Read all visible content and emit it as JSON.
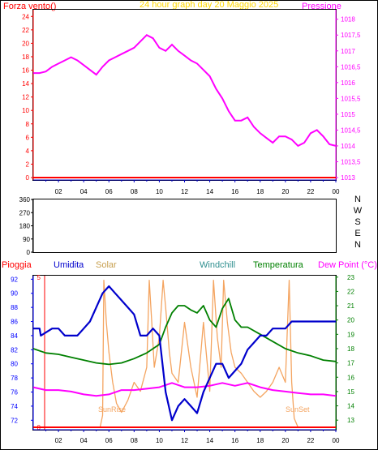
{
  "colors": {
    "frame": "#000000",
    "top_axis_left": "#ff0000",
    "top_axis_right": "#ff00ff",
    "dir_axis": "#000000",
    "rain": "#ff0000",
    "humidity": "#0000cc",
    "solar": "#f4a460",
    "windchill": "#2f8f8f",
    "temperature": "#008000",
    "dewpoint": "#ff00ff",
    "title": "#ffd700",
    "bottom_right_axis": "#008000",
    "bottom_left_axis": "#0000ff",
    "x_axis": "#0000cc"
  },
  "header": {
    "left": "Forza vento()",
    "title": "24 hour graph day   20 Maggio 2025",
    "right": "Pressione"
  },
  "legend": {
    "rain": "Pioggia",
    "humidity": "Umidita",
    "solar": "Solar",
    "windchill": "Windchill",
    "temperature": "Temperatura",
    "dewpoint": "Dew Point (°C)"
  },
  "annotations": {
    "sunrise": "SunRise",
    "sunset": "SunSet"
  },
  "compass": [
    "N",
    "W",
    "S",
    "E",
    "N"
  ],
  "chart_data": [
    {
      "type": "line",
      "name": "wind-pressure",
      "x_ticks": [
        "02",
        "04",
        "06",
        "08",
        "10",
        "12",
        "14",
        "16",
        "18",
        "20",
        "22",
        "00"
      ],
      "y_left_ticks": [
        "0",
        "2",
        "4",
        "6",
        "8",
        "10",
        "12",
        "14",
        "16",
        "18",
        "20",
        "22",
        "24"
      ],
      "y_left_range": [
        0,
        25
      ],
      "y_right_ticks": [
        "1013",
        "1013,5",
        "1014",
        "1014,5",
        "1015",
        "1015,5",
        "1016",
        "1016,5",
        "1017",
        "1017,5",
        "1018"
      ],
      "y_right_range": [
        1013,
        1018.3
      ],
      "series": [
        {
          "name": "Forza vento",
          "axis": "left",
          "x": [
            0,
            24
          ],
          "values": [
            0,
            0
          ]
        },
        {
          "name": "Pressione",
          "axis": "right",
          "x": [
            0,
            0.5,
            1,
            1.5,
            2,
            2.5,
            3,
            3.5,
            4,
            4.5,
            5,
            5.5,
            6,
            6.5,
            7,
            7.5,
            8,
            8.5,
            9,
            9.5,
            10,
            10.5,
            11,
            11.5,
            12,
            12.5,
            13,
            13.5,
            14,
            14.5,
            15,
            15.5,
            16,
            16.5,
            17,
            17.5,
            18,
            18.5,
            19,
            19.5,
            20,
            20.5,
            21,
            21.5,
            22,
            22.5,
            23,
            23.5,
            24
          ],
          "values": [
            1016.3,
            1016.3,
            1016.35,
            1016.5,
            1016.6,
            1016.7,
            1016.8,
            1016.7,
            1016.55,
            1016.4,
            1016.25,
            1016.5,
            1016.7,
            1016.8,
            1016.9,
            1017.0,
            1017.1,
            1017.3,
            1017.5,
            1017.4,
            1017.1,
            1017.0,
            1017.2,
            1017.0,
            1016.85,
            1016.7,
            1016.6,
            1016.4,
            1016.2,
            1015.8,
            1015.5,
            1015.1,
            1014.8,
            1014.8,
            1014.9,
            1014.6,
            1014.4,
            1014.25,
            1014.1,
            1014.3,
            1014.3,
            1014.2,
            1014.0,
            1014.1,
            1014.4,
            1014.5,
            1014.3,
            1014.05,
            1014.0
          ]
        }
      ]
    },
    {
      "type": "scatter",
      "name": "wind-direction",
      "y_ticks": [
        "0",
        "90",
        "180",
        "270",
        "360"
      ],
      "y_range": [
        0,
        360
      ],
      "x_ticks": [],
      "series": []
    },
    {
      "type": "line",
      "name": "rain-humidity-temperature",
      "x_ticks": [
        "02",
        "04",
        "06",
        "08",
        "10",
        "12",
        "14",
        "16",
        "18",
        "20",
        "22",
        "00"
      ],
      "y_left_ticks": [
        "72",
        "74",
        "76",
        "78",
        "80",
        "82",
        "84",
        "86",
        "88",
        "90",
        "92"
      ],
      "y_left_range": [
        71,
        92.5
      ],
      "y_rain_ticks": [
        "0",
        "5"
      ],
      "y_rain_range": [
        0,
        5
      ],
      "y_right_ticks": [
        "13",
        "14",
        "15",
        "16",
        "17",
        "18",
        "19",
        "20",
        "21",
        "22",
        "23"
      ],
      "y_right_range": [
        12.5,
        23.1
      ],
      "series": [
        {
          "name": "Pioggia",
          "axis": "rain",
          "x": [
            0,
            24
          ],
          "values": [
            0,
            0
          ]
        },
        {
          "name": "Umidita",
          "axis": "left",
          "x": [
            0,
            0.5,
            0.6,
            1.5,
            2,
            2.5,
            3,
            3.5,
            4,
            4.5,
            5,
            5.5,
            6,
            6.5,
            7,
            7.5,
            8,
            8.5,
            9,
            9.5,
            10,
            10.5,
            11,
            11.5,
            12,
            12.5,
            13,
            13.5,
            14,
            14.5,
            15,
            15.5,
            16,
            16.5,
            17,
            17.5,
            18,
            18.5,
            19,
            19.5,
            20,
            20.5,
            21,
            21.5,
            22,
            22.5,
            23,
            23.5,
            24
          ],
          "values": [
            85,
            85,
            84,
            85,
            85,
            84,
            84,
            84,
            85,
            86,
            88,
            90,
            91,
            90,
            89,
            88,
            87,
            84,
            84,
            85,
            84,
            76,
            72,
            74,
            75,
            74,
            73,
            76,
            78,
            80,
            80,
            78,
            79,
            80,
            82,
            83,
            84,
            84,
            85,
            85,
            85,
            86,
            86,
            86,
            86,
            86,
            86,
            86,
            86
          ]
        },
        {
          "name": "Solar",
          "axis": "rain",
          "x": [
            0,
            5.3,
            5.5,
            5.6,
            5.8,
            6,
            6.3,
            6.6,
            7,
            7.5,
            8,
            8.5,
            9,
            9.2,
            9.4,
            9.6,
            10,
            10.3,
            10.5,
            10.8,
            11,
            11.5,
            12,
            12.5,
            13,
            13.5,
            14,
            14.3,
            14.6,
            14.9,
            15.1,
            15.4,
            15.7,
            16,
            16.5,
            17,
            17.5,
            18,
            18.5,
            19,
            19.5,
            20,
            20.3,
            20.5,
            20.7,
            21,
            24
          ],
          "values": [
            0,
            0,
            0.4,
            4.9,
            3.5,
            2.5,
            1.5,
            0.8,
            0.5,
            0.9,
            1.5,
            1.2,
            2,
            4.9,
            3.5,
            2,
            3,
            4.9,
            4,
            2.5,
            1.8,
            1.5,
            3.5,
            2,
            1,
            3.5,
            1.2,
            4.9,
            3,
            2,
            4.9,
            3.5,
            2.5,
            2,
            1.8,
            1.5,
            1.2,
            1,
            1.2,
            1.5,
            2,
            1.5,
            4.9,
            1.5,
            0.3,
            0,
            0
          ]
        },
        {
          "name": "Windchill",
          "axis": "right",
          "x": [],
          "values": []
        },
        {
          "name": "Temperatura",
          "axis": "right",
          "x": [
            0,
            1,
            2,
            3,
            4,
            5,
            6,
            7,
            8,
            9,
            10,
            10.5,
            11,
            11.5,
            12,
            12.5,
            13,
            13.5,
            14,
            14.5,
            15,
            15.5,
            16,
            16.5,
            17,
            18,
            19,
            20,
            21,
            22,
            23,
            24
          ],
          "values": [
            18,
            17.7,
            17.6,
            17.4,
            17.2,
            17,
            16.9,
            17,
            17.3,
            17.7,
            18.3,
            19.5,
            20.5,
            21,
            21,
            20.7,
            20.5,
            21,
            20,
            19.5,
            20.8,
            21.5,
            20,
            19.5,
            19.5,
            19,
            18.5,
            18,
            17.7,
            17.5,
            17.2,
            17.1
          ]
        },
        {
          "name": "Dew Point",
          "axis": "right",
          "x": [
            0,
            1,
            2,
            3,
            4,
            5,
            6,
            7,
            8,
            9,
            10,
            11,
            12,
            13,
            14,
            15,
            16,
            17,
            18,
            19,
            20,
            21,
            22,
            23,
            24
          ],
          "values": [
            15.3,
            15.1,
            15.1,
            15,
            14.8,
            14.7,
            14.8,
            15.1,
            15.1,
            15.2,
            15.3,
            15.6,
            15.3,
            15.3,
            15.4,
            15.6,
            15.4,
            15.6,
            15.3,
            15.1,
            15,
            14.9,
            14.8,
            14.8,
            14.7
          ]
        }
      ]
    }
  ]
}
